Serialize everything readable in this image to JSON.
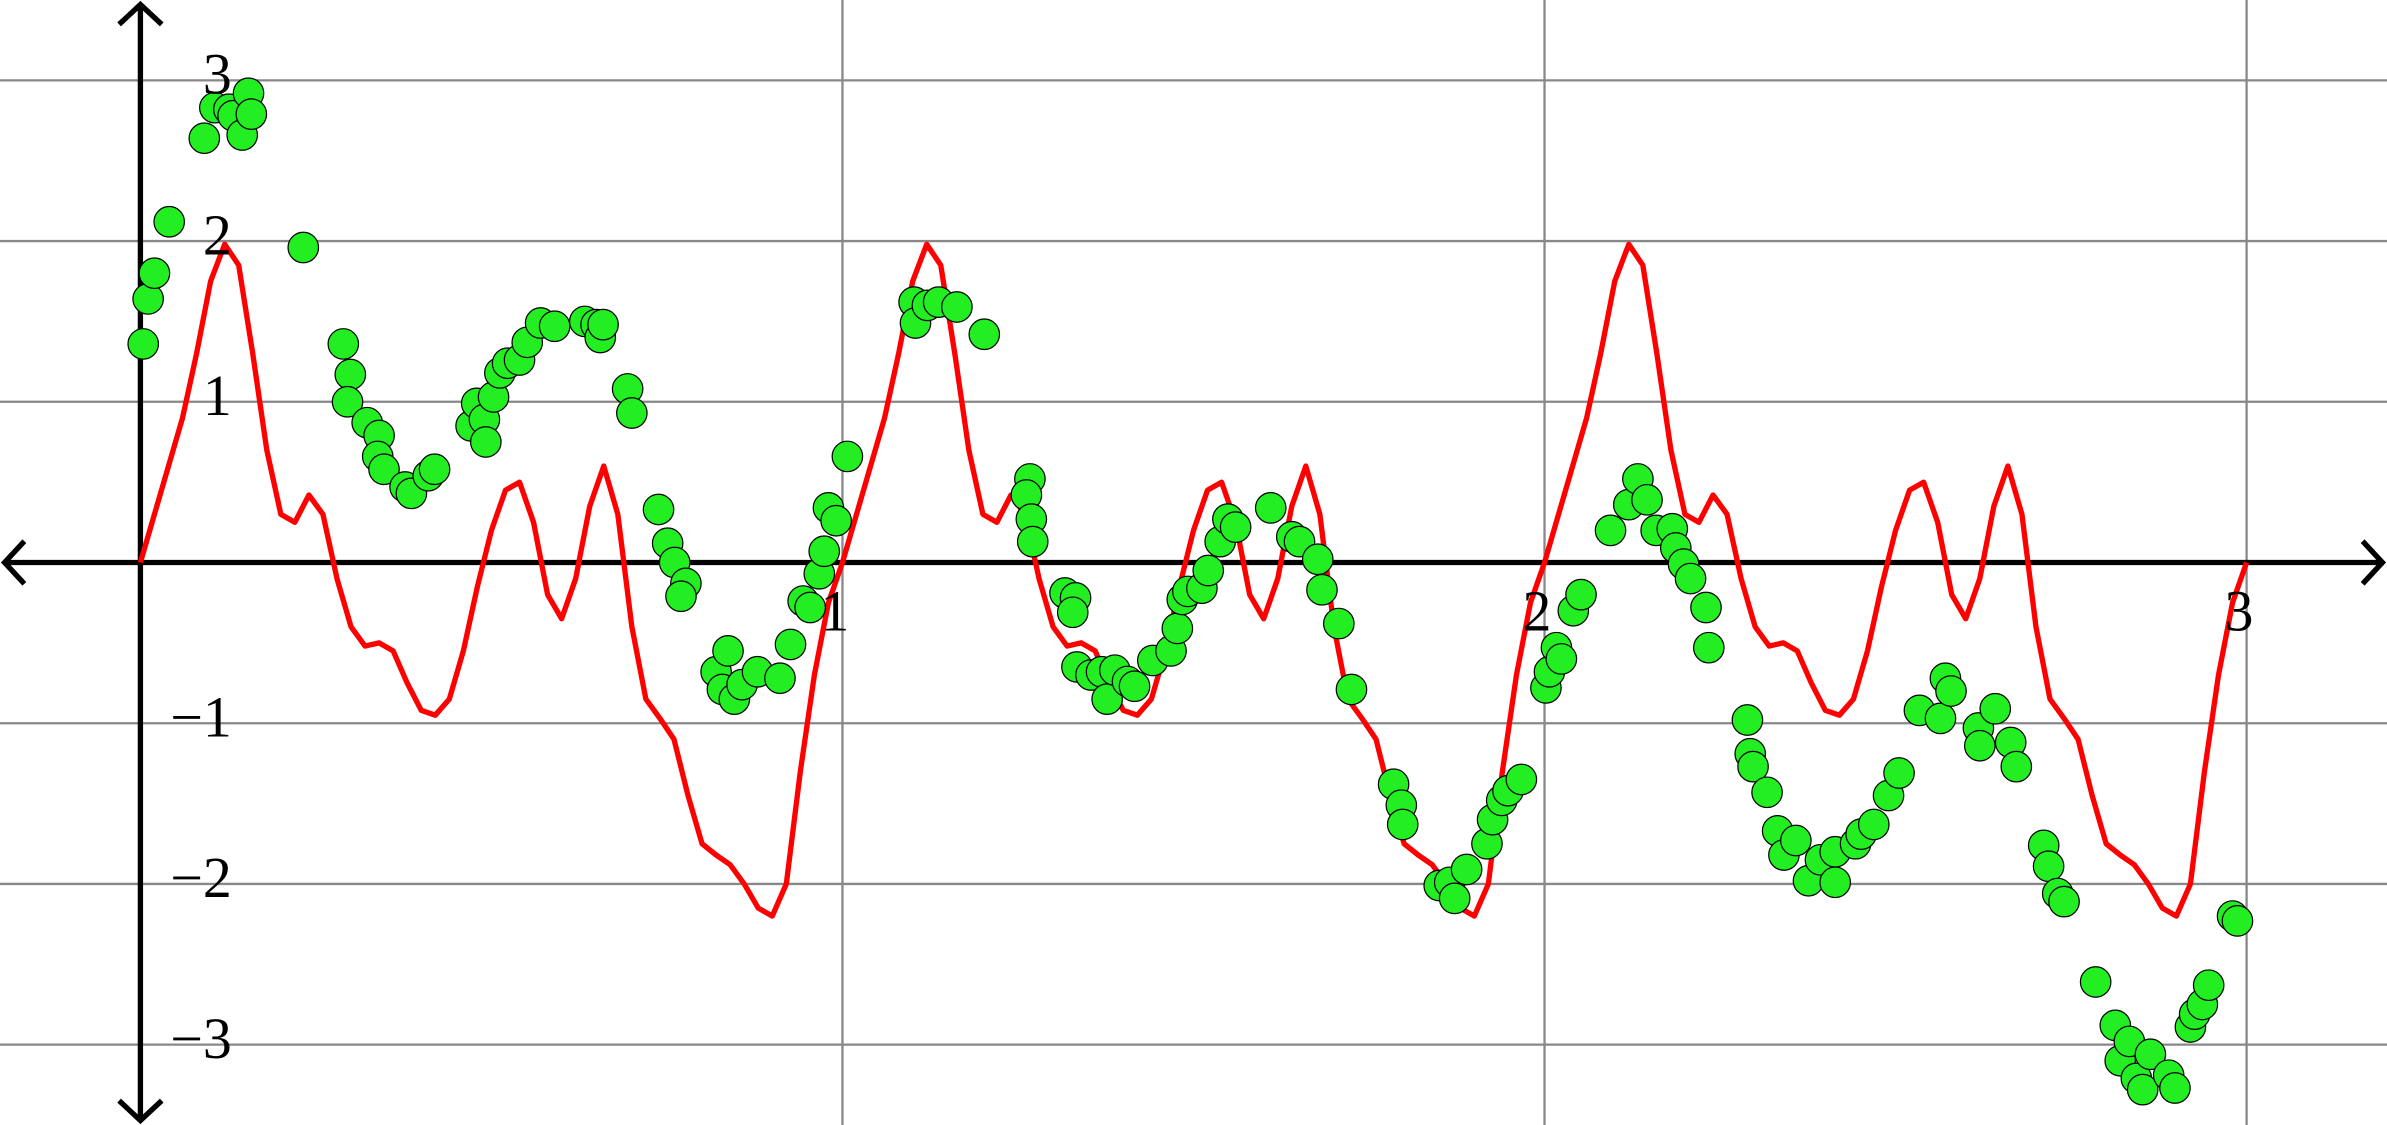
{
  "chart_data": {
    "type": "line",
    "xlim": [
      -0.2,
      3.2
    ],
    "ylim": [
      -3.5,
      3.5
    ],
    "xticks": [
      1,
      2,
      3
    ],
    "yticks": [
      {
        "value": -3,
        "label": "−3"
      },
      {
        "value": -2,
        "label": "−2"
      },
      {
        "value": -1,
        "label": "−1"
      },
      1,
      2,
      3
    ],
    "grid": true,
    "series": [
      {
        "type": "line",
        "color": "#ff0000",
        "x": [
          0,
          0.02,
          0.04,
          0.06,
          0.08,
          0.1,
          0.12,
          0.14,
          0.16,
          0.18,
          0.2,
          0.22,
          0.24,
          0.26,
          0.28,
          0.3,
          0.32,
          0.34,
          0.36,
          0.38,
          0.4,
          0.42,
          0.44,
          0.46,
          0.48,
          0.5,
          0.52,
          0.54,
          0.56,
          0.58,
          0.6,
          0.62,
          0.64,
          0.66,
          0.68,
          0.7,
          0.72,
          0.74,
          0.76,
          0.78,
          0.8,
          0.82,
          0.84,
          0.86,
          0.88,
          0.9,
          0.92,
          0.94,
          0.96,
          0.98,
          1,
          1.02,
          1.04,
          1.06,
          1.08,
          1.1,
          1.12,
          1.14,
          1.16,
          1.18,
          1.2,
          1.22,
          1.24,
          1.26,
          1.28,
          1.3,
          1.32,
          1.34,
          1.36,
          1.38,
          1.4,
          1.42,
          1.44,
          1.46,
          1.48,
          1.5,
          1.52,
          1.54,
          1.56,
          1.58,
          1.6,
          1.62,
          1.64,
          1.66,
          1.68,
          1.7,
          1.72,
          1.74,
          1.76,
          1.78,
          1.8,
          1.82,
          1.84,
          1.86,
          1.88,
          1.9,
          1.92,
          1.94,
          1.96,
          1.98,
          2,
          2.02,
          2.04,
          2.06,
          2.08,
          2.1,
          2.12,
          2.14,
          2.16,
          2.18,
          2.2,
          2.22,
          2.24,
          2.26,
          2.28,
          2.3,
          2.32,
          2.34,
          2.36,
          2.38,
          2.4,
          2.42,
          2.44,
          2.46,
          2.48,
          2.5,
          2.52,
          2.54,
          2.56,
          2.58,
          2.6,
          2.62,
          2.64,
          2.66,
          2.68,
          2.7,
          2.72,
          2.74,
          2.76,
          2.78,
          2.8,
          2.82,
          2.84,
          2.86,
          2.88,
          2.9,
          2.92,
          2.94,
          2.96,
          2.98,
          3
        ],
        "values": [
          0,
          0.3,
          0.6,
          0.9,
          1.3,
          1.75,
          1.98,
          1.85,
          1.3,
          0.7,
          0.3,
          0.25,
          0.42,
          0.3,
          -0.1,
          -0.4,
          -0.52,
          -0.5,
          -0.55,
          -0.75,
          -0.92,
          -0.95,
          -0.85,
          -0.55,
          -0.15,
          0.2,
          0.45,
          0.5,
          0.25,
          -0.2,
          -0.35,
          -0.1,
          0.35,
          0.6,
          0.3,
          -0.4,
          -0.85,
          -0.97,
          -1.1,
          -1.45,
          -1.75,
          -1.82,
          -1.88,
          -2.0,
          -2.15,
          -2.2,
          -2.0,
          -1.3,
          -0.7,
          -0.25,
          0,
          0.3,
          0.6,
          0.9,
          1.3,
          1.75,
          1.98,
          1.85,
          1.3,
          0.7,
          0.3,
          0.25,
          0.42,
          0.3,
          -0.1,
          -0.4,
          -0.52,
          -0.5,
          -0.55,
          -0.75,
          -0.92,
          -0.95,
          -0.85,
          -0.55,
          -0.15,
          0.2,
          0.45,
          0.5,
          0.25,
          -0.2,
          -0.35,
          -0.1,
          0.35,
          0.6,
          0.3,
          -0.4,
          -0.85,
          -0.97,
          -1.1,
          -1.45,
          -1.75,
          -1.82,
          -1.88,
          -2.0,
          -2.15,
          -2.2,
          -2.0,
          -1.3,
          -0.7,
          -0.25,
          0,
          0.3,
          0.6,
          0.9,
          1.3,
          1.75,
          1.98,
          1.85,
          1.3,
          0.7,
          0.3,
          0.25,
          0.42,
          0.3,
          -0.1,
          -0.4,
          -0.52,
          -0.5,
          -0.55,
          -0.75,
          -0.92,
          -0.95,
          -0.85,
          -0.55,
          -0.15,
          0.2,
          0.45,
          0.5,
          0.25,
          -0.2,
          -0.35,
          -0.1,
          0.35,
          0.6,
          0.3,
          -0.4,
          -0.85,
          -0.97,
          -1.1,
          -1.45,
          -1.75,
          -1.82,
          -1.88,
          -2.0,
          -2.15,
          -2.2,
          -2.0,
          -1.3,
          -0.7,
          -0.25,
          0
        ]
      },
      {
        "type": "scatter",
        "color": "#22ee22",
        "x": [
          0.004,
          0.011,
          0.02,
          0.041,
          0.091,
          0.106,
          0.126,
          0.132,
          0.145,
          0.154,
          0.158,
          0.232,
          0.289,
          0.299,
          0.295,
          0.323,
          0.34,
          0.338,
          0.347,
          0.377,
          0.386,
          0.41,
          0.419,
          0.471,
          0.479,
          0.49,
          0.492,
          0.503,
          0.512,
          0.523,
          0.54,
          0.551,
          0.57,
          0.59,
          0.633,
          0.649,
          0.655,
          0.659,
          0.694,
          0.7,
          0.738,
          0.751,
          0.761,
          0.777,
          0.77,
          0.82,
          0.837,
          0.829,
          0.846,
          0.857,
          0.879,
          0.911,
          0.926,
          0.944,
          0.954,
          0.967,
          0.974,
          0.98,
          0.991,
          1.007,
          1.102,
          1.104,
          1.121,
          1.137,
          1.163,
          1.202,
          1.267,
          1.262,
          1.269,
          1.271,
          1.317,
          1.332,
          1.328,
          1.334,
          1.354,
          1.369,
          1.377,
          1.388,
          1.406,
          1.416,
          1.442,
          1.468,
          1.477,
          1.484,
          1.492,
          1.512,
          1.521,
          1.538,
          1.549,
          1.56,
          1.61,
          1.64,
          1.651,
          1.677,
          1.683,
          1.707,
          1.725,
          1.785,
          1.796,
          1.798,
          1.85,
          1.865,
          1.872,
          1.889,
          1.918,
          1.926,
          1.939,
          1.948,
          1.967,
          2.002,
          2.007,
          2.017,
          2.024,
          2.041,
          2.052,
          2.094,
          2.12,
          2.133,
          2.146,
          2.159,
          2.182,
          2.187,
          2.198,
          2.208,
          2.23,
          2.234,
          2.289,
          2.293,
          2.297,
          2.317,
          2.332,
          2.341,
          2.358,
          2.376,
          2.393,
          2.414,
          2.414,
          2.443,
          2.451,
          2.469,
          2.49,
          2.505,
          2.534,
          2.564,
          2.571,
          2.579,
          2.618,
          2.62,
          2.642,
          2.664,
          2.672,
          2.711,
          2.718,
          2.731,
          2.74,
          2.785,
          2.813,
          2.82,
          2.833,
          2.843,
          2.852,
          2.863,
          2.889,
          2.898,
          2.92,
          2.926,
          2.937,
          2.946,
          2.98,
          2.987
        ],
        "values": [
          1.36,
          1.64,
          1.8,
          2.12,
          2.64,
          2.83,
          2.82,
          2.78,
          2.66,
          2.92,
          2.79,
          1.96,
          1.36,
          1.17,
          1.0,
          0.87,
          0.79,
          0.66,
          0.58,
          0.47,
          0.43,
          0.54,
          0.58,
          0.85,
          0.99,
          0.89,
          0.75,
          1.03,
          1.18,
          1.24,
          1.26,
          1.37,
          1.49,
          1.47,
          1.5,
          1.48,
          1.4,
          1.48,
          1.08,
          0.93,
          0.33,
          0.12,
          0.0,
          -0.13,
          -0.21,
          -0.68,
          -0.55,
          -0.79,
          -0.85,
          -0.76,
          -0.68,
          -0.72,
          -0.51,
          -0.24,
          -0.28,
          -0.07,
          0.07,
          0.34,
          0.26,
          0.66,
          1.62,
          1.49,
          1.6,
          1.62,
          1.59,
          1.42,
          0.52,
          0.42,
          0.27,
          0.13,
          -0.19,
          -0.22,
          -0.31,
          -0.65,
          -0.7,
          -0.68,
          -0.85,
          -0.67,
          -0.74,
          -0.77,
          -0.61,
          -0.55,
          -0.41,
          -0.23,
          -0.18,
          -0.16,
          -0.05,
          0.13,
          0.27,
          0.22,
          0.34,
          0.16,
          0.13,
          0.02,
          -0.17,
          -0.38,
          -0.79,
          -1.38,
          -1.51,
          -1.63,
          -2.01,
          -1.99,
          -2.09,
          -1.91,
          -1.75,
          -1.6,
          -1.48,
          -1.42,
          -1.35,
          -0.78,
          -0.68,
          -0.53,
          -0.6,
          -0.3,
          -0.2,
          0.2,
          0.36,
          0.52,
          0.39,
          0.2,
          0.21,
          0.09,
          -0.01,
          -0.1,
          -0.28,
          -0.53,
          -0.98,
          -1.19,
          -1.27,
          -1.43,
          -1.67,
          -1.82,
          -1.73,
          -1.98,
          -1.85,
          -1.99,
          -1.8,
          -1.75,
          -1.69,
          -1.63,
          -1.45,
          -1.31,
          -0.92,
          -0.97,
          -0.72,
          -0.8,
          -1.03,
          -1.14,
          -0.91,
          -1.12,
          -1.27,
          -1.76,
          -1.89,
          -2.06,
          -2.11,
          -2.61,
          -2.88,
          -3.1,
          -2.98,
          -3.21,
          -3.28,
          -3.06,
          -3.19,
          -3.27,
          -2.89,
          -2.81,
          -2.75,
          -2.63,
          -2.2,
          -2.23
        ]
      }
    ]
  }
}
